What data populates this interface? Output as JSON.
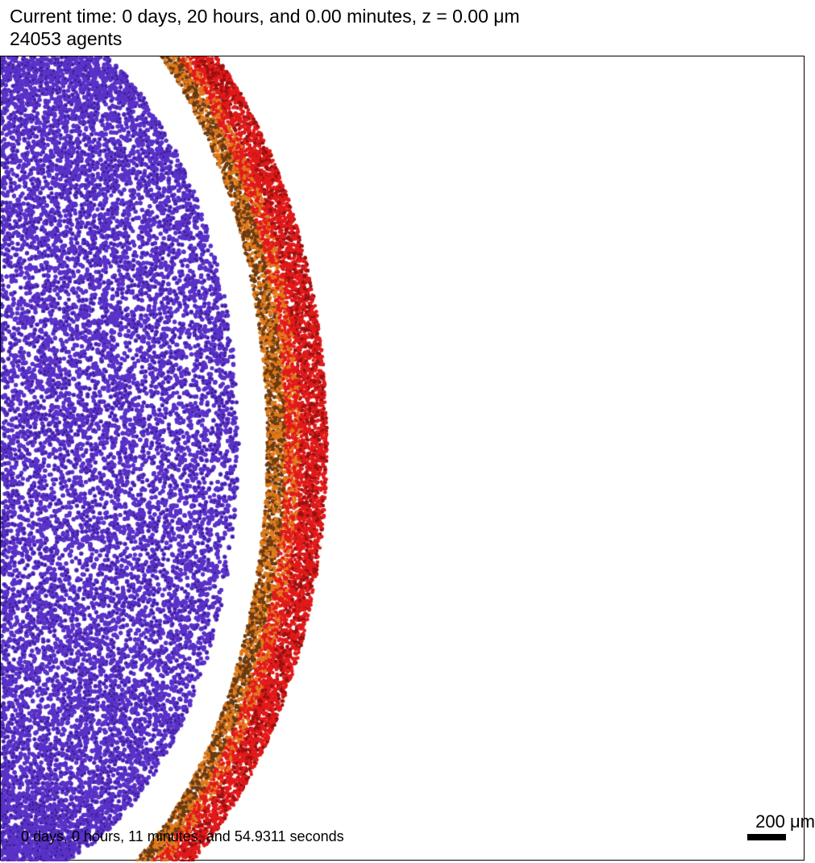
{
  "header": {
    "current_time": "Current time: 0 days, 20 hours, and 0.00 minutes, z = 0.00 μm",
    "agent_count": "24053 agents"
  },
  "plot": {
    "simulation_time": "0 days, 0 hours, 11 minutes, and 54.9311 seconds",
    "scale_bar_label": "200 μm",
    "colors": {
      "blue_cells": "#5a32c8",
      "blue_nuclei": "#2a136a",
      "orange_cells": "#e07a1a",
      "red_cells": "#e21a1a",
      "dark_red_cells": "#9a1010",
      "brown_cells": "#6a3a12",
      "background": "#ffffff"
    }
  }
}
